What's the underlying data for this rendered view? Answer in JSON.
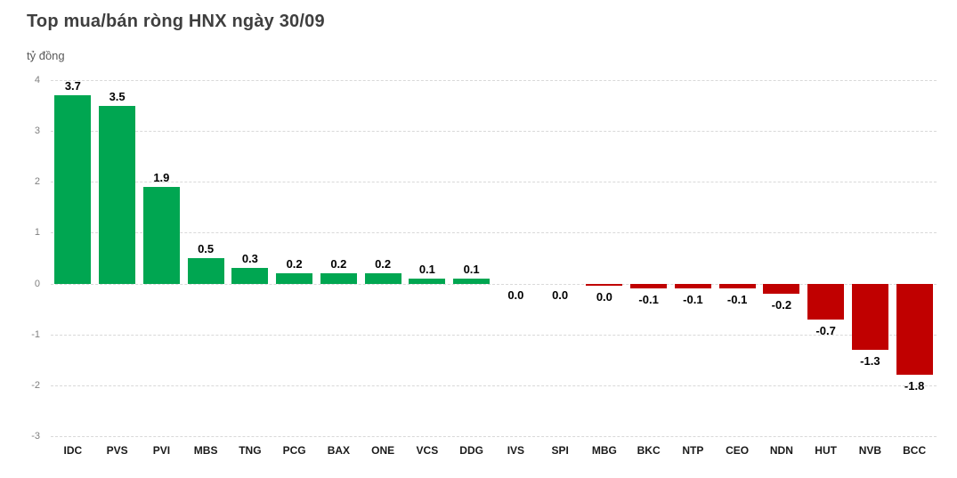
{
  "chart_data": {
    "type": "bar",
    "title": "Top mua/bán ròng HNX ngày 30/09",
    "ylabel": "tỷ đồng",
    "categories": [
      "IDC",
      "PVS",
      "PVI",
      "MBS",
      "TNG",
      "PCG",
      "BAX",
      "ONE",
      "VCS",
      "DDG",
      "IVS",
      "SPI",
      "MBG",
      "BKC",
      "NTP",
      "CEO",
      "NDN",
      "HUT",
      "NVB",
      "BCC"
    ],
    "values": [
      3.7,
      3.5,
      1.9,
      0.5,
      0.3,
      0.2,
      0.2,
      0.2,
      0.1,
      0.1,
      0.0,
      0.0,
      0.0,
      -0.1,
      -0.1,
      -0.1,
      -0.2,
      -0.7,
      -1.3,
      -1.8
    ],
    "labels": [
      "3.7",
      "3.5",
      "1.9",
      "0.5",
      "0.3",
      "0.2",
      "0.2",
      "0.2",
      "0.1",
      "0.1",
      "0.0",
      "0.0",
      "0.0",
      "-0.1",
      "-0.1",
      "-0.1",
      "-0.2",
      "-0.7",
      "-1.3",
      "-1.8"
    ],
    "ylim": [
      -3,
      4
    ],
    "yticks": [
      4,
      3,
      2,
      1,
      0,
      -1,
      -2,
      -3
    ],
    "grid": true,
    "legend_position": "none",
    "positive_color": "#00A651",
    "negative_color": "#C00000",
    "tiny_negative_bar_index": 12
  }
}
